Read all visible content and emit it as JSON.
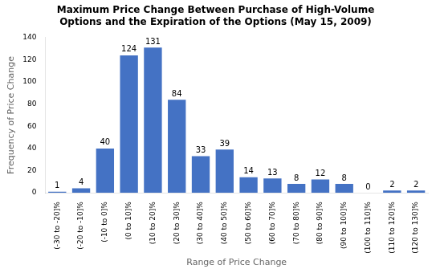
{
  "chart_data": {
    "type": "bar",
    "title": "Maximum Price Change Between Purchase of High-Volume\nOptions and the Expiration of the Options (May 15, 2009)",
    "xlabel": "Range of Price Change",
    "ylabel": "Frequency of Price Change",
    "categories": [
      "(-30 to -20]%",
      "(-20 to -10]%",
      "(-10 to 0]%",
      "(0 to 10]%",
      "(10 to 20]%",
      "(20 to 30]%",
      "(30 to 40]%",
      "(40 to 50]%",
      "(50 to 60]%",
      "(60 to 70]%",
      "(70 to 80]%",
      "(80 to 90]%",
      "(90 to 100]%",
      "(100 to 110]%",
      "(110 to 120]%",
      "(120 to 130]%"
    ],
    "values": [
      1,
      4,
      40,
      124,
      131,
      84,
      33,
      39,
      14,
      13,
      8,
      12,
      8,
      0,
      2,
      2
    ],
    "color": "#4472C4",
    "ylim": [
      0,
      140
    ],
    "yticks": [
      0,
      20,
      40,
      60,
      80,
      100,
      120,
      140
    ],
    "grid": false,
    "data_labels": true
  }
}
